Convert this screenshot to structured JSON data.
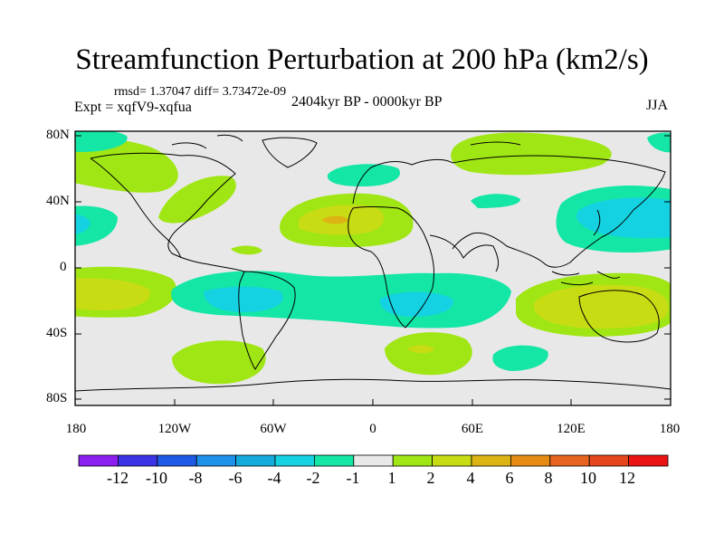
{
  "title": "Streamfunction Perturbation at 200 hPa (km2/s)",
  "stats": {
    "rmsd_text": "rmsd= 1.37047 diff= 3.73472e-09"
  },
  "experiment": "Expt = xqfV9-xqfua",
  "period": "2404kyr BP - 0000kyr BP",
  "season": "JJA",
  "y_ticks": [
    "80N",
    "40N",
    "0",
    "40S",
    "80S"
  ],
  "x_ticks": [
    "180",
    "120W",
    "60W",
    "0",
    "60E",
    "120E",
    "180"
  ],
  "colorbar": {
    "labels": [
      "-12",
      "-10",
      "-8",
      "-6",
      "-4",
      "-2",
      "-1",
      "1",
      "2",
      "4",
      "6",
      "8",
      "10",
      "12"
    ],
    "colors": [
      "#8c1ef0",
      "#3c32e6",
      "#1e5ae6",
      "#1e91eb",
      "#14aadc",
      "#14d2e1",
      "#14e6a5",
      "#e8e8e8",
      "#a0e614",
      "#c8dc14",
      "#dcb414",
      "#e68c14",
      "#e6641e",
      "#e6461e",
      "#eb1414"
    ]
  },
  "map_colors": {
    "neutral": "#e8e8e8",
    "pos1": "#a0e614",
    "pos2": "#c8dc14",
    "pos3": "#dcb414",
    "neg1": "#14e6a5",
    "neg2": "#14d2e1",
    "coast": "#000000"
  }
}
